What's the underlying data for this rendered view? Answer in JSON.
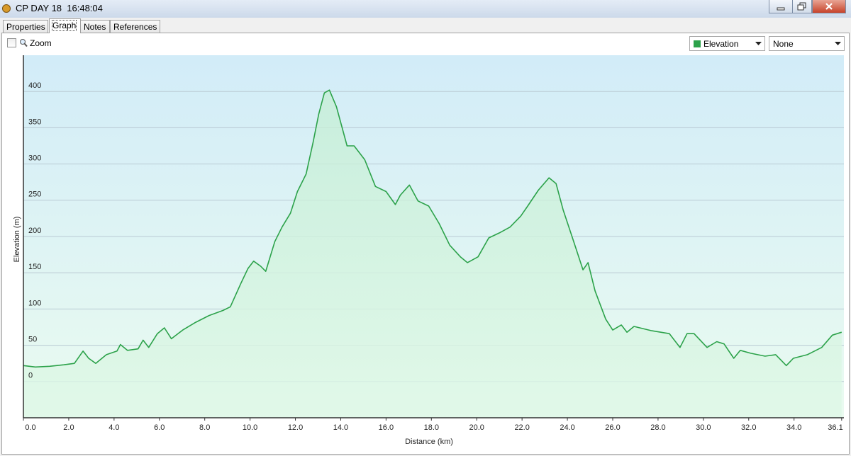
{
  "window": {
    "title": "CP DAY 18  16:48:04"
  },
  "tabs": [
    "Properties",
    "Graph",
    "Notes",
    "References"
  ],
  "toolbar": {
    "zoom_label": "Zoom",
    "second_select": "None"
  },
  "chart_data": {
    "type": "area",
    "x_label": "Distance (km)",
    "y_label": "Elevation (m)",
    "x": [
      0,
      0.53,
      1.16,
      1.78,
      2.25,
      2.63,
      2.88,
      3.19,
      3.66,
      4.13,
      4.28,
      4.59,
      5.06,
      5.28,
      5.53,
      5.91,
      6.22,
      6.53,
      7.03,
      7.56,
      8.19,
      8.81,
      9.13,
      9.59,
      9.91,
      10.16,
      10.47,
      10.69,
      11.09,
      11.41,
      11.78,
      12.09,
      12.47,
      12.78,
      13.03,
      13.28,
      13.5,
      13.81,
      14.28,
      14.59,
      15.06,
      15.53,
      16.0,
      16.41,
      16.63,
      17.03,
      17.41,
      17.88,
      18.34,
      18.81,
      19.28,
      19.59,
      20.06,
      20.53,
      21.0,
      21.47,
      21.94,
      22.25,
      22.72,
      23.19,
      23.5,
      23.81,
      24.28,
      24.69,
      24.91,
      25.22,
      25.69,
      26.0,
      26.38,
      26.63,
      26.94,
      27.72,
      28.5,
      28.97,
      29.28,
      29.59,
      30.16,
      30.59,
      30.91,
      31.34,
      31.63,
      32.09,
      32.72,
      33.19,
      33.66,
      33.97,
      34.59,
      35.22,
      35.69,
      36.1
    ],
    "series": [
      {
        "name": "Elevation",
        "color": "#2ca24a",
        "values": [
          22,
          20,
          21,
          23,
          25,
          42,
          32,
          25,
          37,
          42,
          51,
          43,
          45,
          57,
          47,
          66,
          74,
          59,
          71,
          81,
          91,
          98,
          103,
          135,
          156,
          166,
          159,
          152,
          193,
          213,
          232,
          262,
          286,
          330,
          369,
          398,
          402,
          379,
          325,
          325,
          306,
          269,
          262,
          244,
          257,
          271,
          249,
          242,
          218,
          188,
          172,
          164,
          172,
          198,
          205,
          213,
          228,
          242,
          264,
          281,
          273,
          237,
          193,
          154,
          164,
          125,
          86,
          71,
          78,
          68,
          76,
          70,
          66,
          47,
          66,
          66,
          47,
          55,
          52,
          32,
          43,
          39,
          35,
          37,
          22,
          32,
          37,
          47,
          64,
          68
        ]
      }
    ],
    "xlim": [
      0,
      36.2
    ],
    "ylim": [
      -50,
      450
    ],
    "xticks": [
      {
        "value": 0,
        "label": "0.0"
      },
      {
        "value": 2,
        "label": "2.0"
      },
      {
        "value": 4,
        "label": "4.0"
      },
      {
        "value": 6,
        "label": "6.0"
      },
      {
        "value": 8,
        "label": "8.0"
      },
      {
        "value": 10,
        "label": "10.0"
      },
      {
        "value": 12,
        "label": "12.0"
      },
      {
        "value": 14,
        "label": "14.0"
      },
      {
        "value": 16,
        "label": "16.0"
      },
      {
        "value": 18,
        "label": "18.0"
      },
      {
        "value": 20,
        "label": "20.0"
      },
      {
        "value": 22,
        "label": "22.0"
      },
      {
        "value": 24,
        "label": "24.0"
      },
      {
        "value": 26,
        "label": "26.0"
      },
      {
        "value": 28,
        "label": "28.0"
      },
      {
        "value": 30,
        "label": "30.0"
      },
      {
        "value": 32,
        "label": "32.0"
      },
      {
        "value": 34,
        "label": "34.0"
      },
      36.1
    ],
    "yticks": [
      0,
      50,
      100,
      150,
      200,
      250,
      300,
      350,
      400
    ],
    "grid": true
  }
}
